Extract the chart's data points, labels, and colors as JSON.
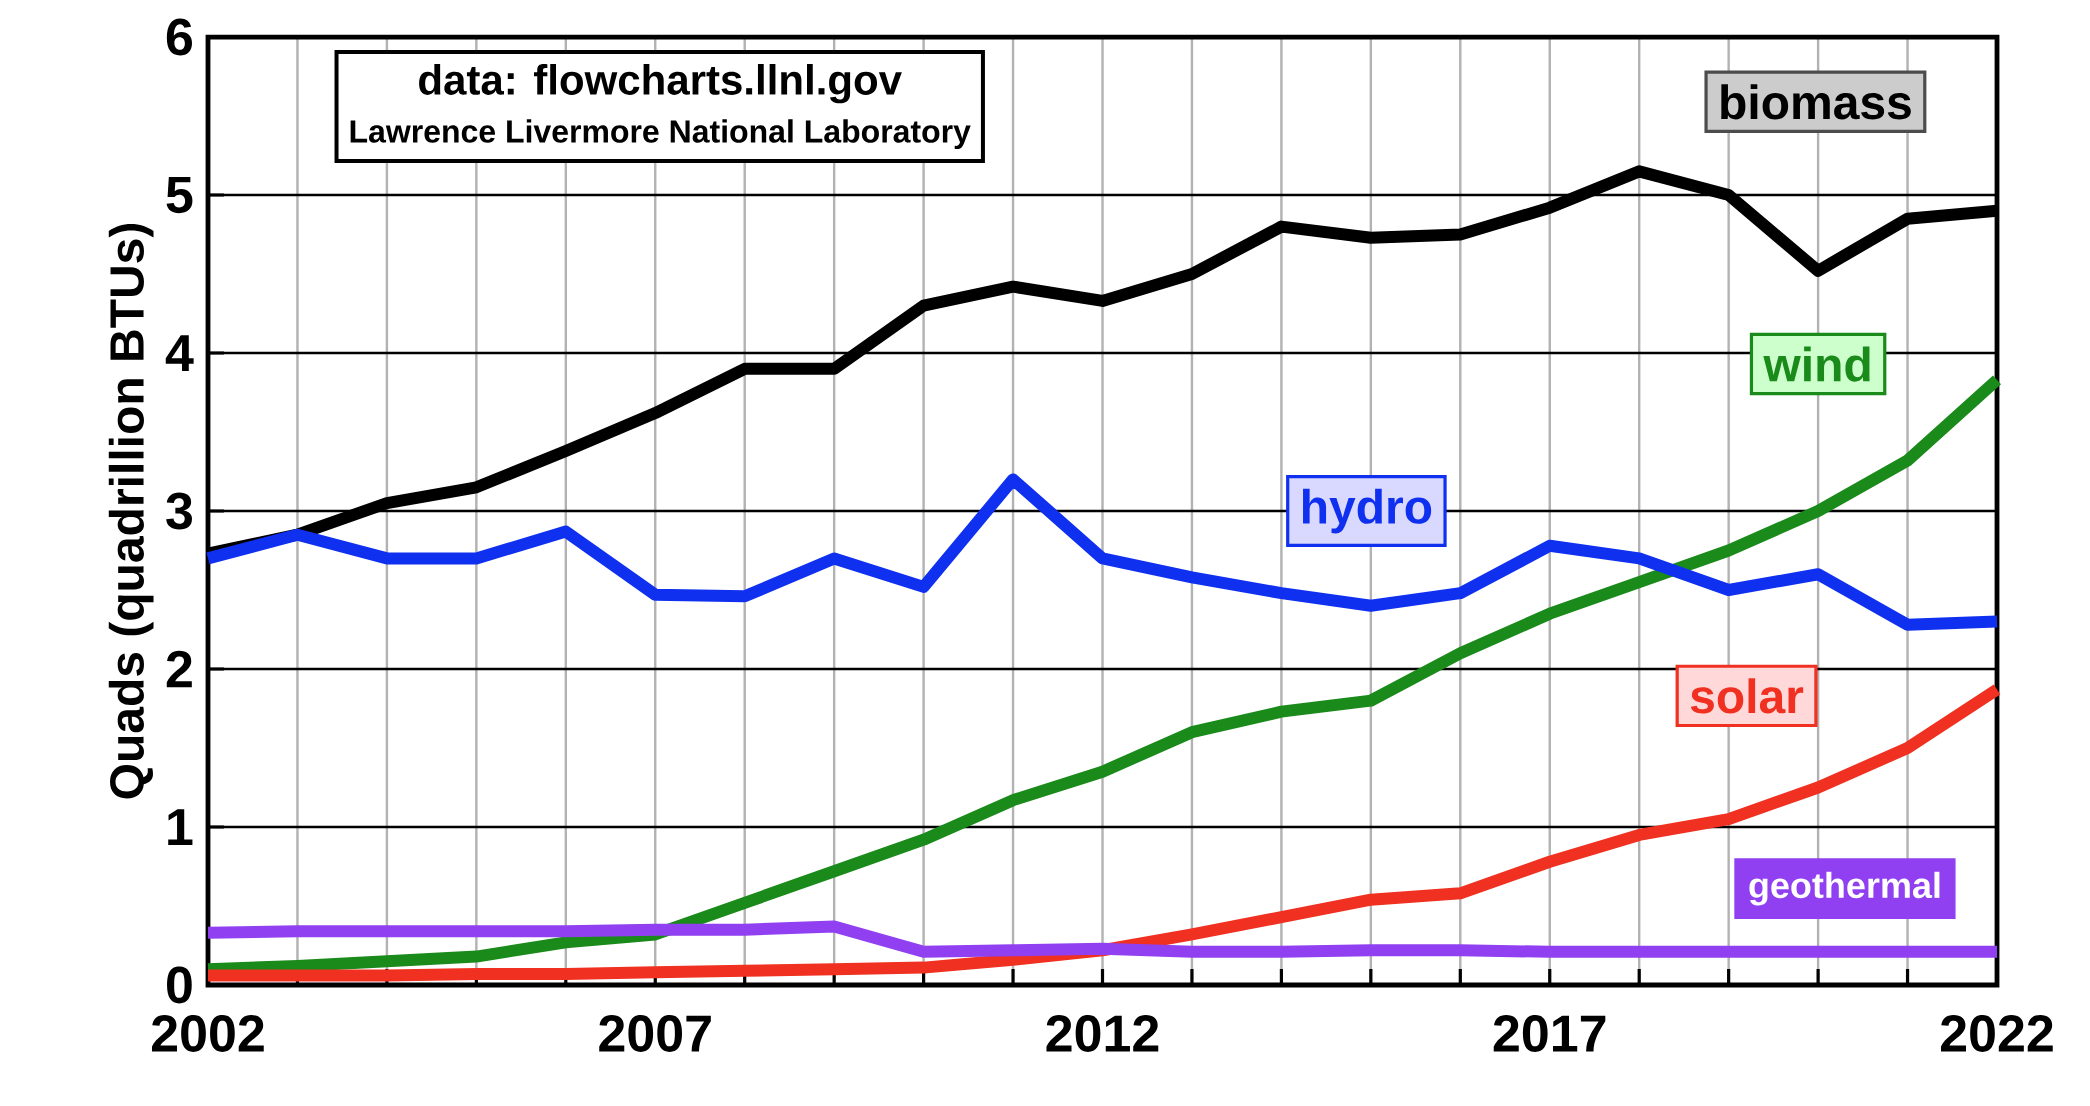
{
  "chart_data": {
    "type": "line",
    "ylabel": "Quads (quadrillion BTUs)",
    "annotations": [
      "data: flowcharts.llnl.gov",
      "Lawrence Livermore National Laboratory"
    ],
    "x": [
      2002,
      2003,
      2004,
      2005,
      2006,
      2007,
      2008,
      2009,
      2010,
      2011,
      2012,
      2013,
      2014,
      2015,
      2016,
      2017,
      2018,
      2019,
      2020,
      2021,
      2022
    ],
    "series": [
      {
        "name": "biomass",
        "color": "#000000",
        "values": [
          2.73,
          2.85,
          3.05,
          3.15,
          3.38,
          3.62,
          3.9,
          3.9,
          4.3,
          4.42,
          4.33,
          4.5,
          4.8,
          4.73,
          4.75,
          4.92,
          5.15,
          5.0,
          4.52,
          4.85,
          4.9
        ]
      },
      {
        "name": "wind",
        "color": "#1a8a1a",
        "values": [
          0.1,
          0.12,
          0.15,
          0.18,
          0.27,
          0.32,
          0.52,
          0.72,
          0.92,
          1.17,
          1.35,
          1.6,
          1.73,
          1.8,
          2.1,
          2.35,
          2.55,
          2.75,
          3.0,
          3.32,
          3.83
        ]
      },
      {
        "name": "hydro",
        "color": "#1030f0",
        "values": [
          2.7,
          2.85,
          2.7,
          2.7,
          2.87,
          2.47,
          2.46,
          2.7,
          2.52,
          3.2,
          2.7,
          2.58,
          2.48,
          2.4,
          2.48,
          2.78,
          2.7,
          2.5,
          2.6,
          2.28,
          2.3
        ]
      },
      {
        "name": "solar",
        "color": "#f03020",
        "values": [
          0.06,
          0.06,
          0.06,
          0.07,
          0.07,
          0.08,
          0.09,
          0.1,
          0.11,
          0.16,
          0.22,
          0.32,
          0.43,
          0.54,
          0.58,
          0.78,
          0.95,
          1.05,
          1.25,
          1.5,
          1.87
        ]
      },
      {
        "name": "geothermal",
        "color": "#9040f0",
        "values": [
          0.33,
          0.34,
          0.34,
          0.34,
          0.34,
          0.35,
          0.35,
          0.37,
          0.21,
          0.22,
          0.23,
          0.21,
          0.21,
          0.22,
          0.22,
          0.21,
          0.21,
          0.21,
          0.21,
          0.21,
          0.21
        ]
      }
    ],
    "xlim": [
      2002,
      2022
    ],
    "ylim": [
      0,
      6
    ],
    "xticks": [
      2002,
      {
        "value": 2003,
        "label": null
      },
      {
        "value": 2004,
        "label": null
      },
      {
        "value": 2005,
        "label": null
      },
      {
        "value": 2006,
        "label": null
      },
      2007,
      {
        "value": 2008,
        "label": null
      },
      {
        "value": 2009,
        "label": null
      },
      {
        "value": 2010,
        "label": null
      },
      {
        "value": 2011,
        "label": null
      },
      2012,
      {
        "value": 2013,
        "label": null
      },
      {
        "value": 2014,
        "label": null
      },
      {
        "value": 2015,
        "label": null
      },
      {
        "value": 2016,
        "label": null
      },
      2017,
      {
        "value": 2018,
        "label": null
      },
      {
        "value": 2019,
        "label": null
      },
      {
        "value": 2020,
        "label": null
      },
      {
        "value": 2021,
        "label": null
      },
      2022
    ],
    "yticks": [
      0,
      1,
      2,
      3,
      4,
      5,
      6
    ],
    "grid": true,
    "legend": false,
    "marker": "none",
    "line_style": "solid"
  }
}
